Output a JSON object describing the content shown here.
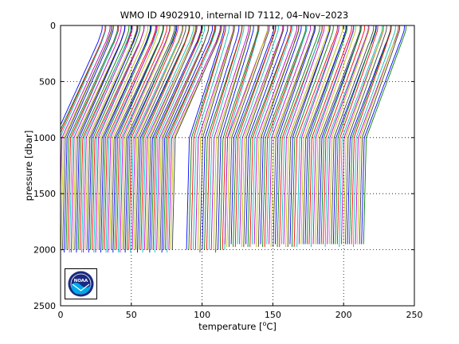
{
  "chart_data": {
    "type": "line",
    "title": "WMO ID 4902910, internal ID 7112, 04–Nov–2023",
    "xlabel_prefix": "temperature [",
    "xlabel_unit_sup": "o",
    "xlabel_suffix": "C]",
    "ylabel": "pressure [dbar]",
    "xlim": [
      0,
      250
    ],
    "ylim": [
      2500,
      0
    ],
    "y_reversed": true,
    "xticks": [
      0,
      50,
      100,
      150,
      200,
      250
    ],
    "yticks": [
      0,
      500,
      1000,
      1500,
      2000,
      2500
    ],
    "xtick_labels": [
      "0",
      "50",
      "100",
      "150",
      "200",
      "250"
    ],
    "ytick_labels": [
      "0",
      "500",
      "1000",
      "1500",
      "2000",
      "2500"
    ],
    "grid": "dotted",
    "profile_offset_note": "",
    "series_colors": [
      "#0000ff",
      "#008000",
      "#ff0000",
      "#00bfbf",
      "#bf00bf",
      "#bfbf00",
      "#404040"
    ],
    "groups": [
      {
        "x_start": 18,
        "x_end": 103,
        "count": 70,
        "max_depth": 2040,
        "surface_shift": 12,
        "depth_shift_500": 22,
        "deep_shift": 2
      },
      {
        "x_start": 105,
        "x_end": 132,
        "count": 18,
        "max_depth": 2030,
        "surface_shift": 10,
        "depth_shift_500": 14,
        "deep_shift": 2
      },
      {
        "x_start": 134,
        "x_end": 183,
        "count": 34,
        "max_depth": 2000,
        "surface_shift": 12,
        "depth_shift_500": 16,
        "deep_shift": 2
      },
      {
        "x_start": 185,
        "x_end": 232,
        "count": 34,
        "max_depth": 1980,
        "surface_shift": 12,
        "depth_shift_500": 16,
        "deep_shift": 2
      }
    ]
  },
  "logo": {
    "text": "NOAA",
    "ring_color": "#1a2a80",
    "wave_color": "#00a8e8"
  }
}
